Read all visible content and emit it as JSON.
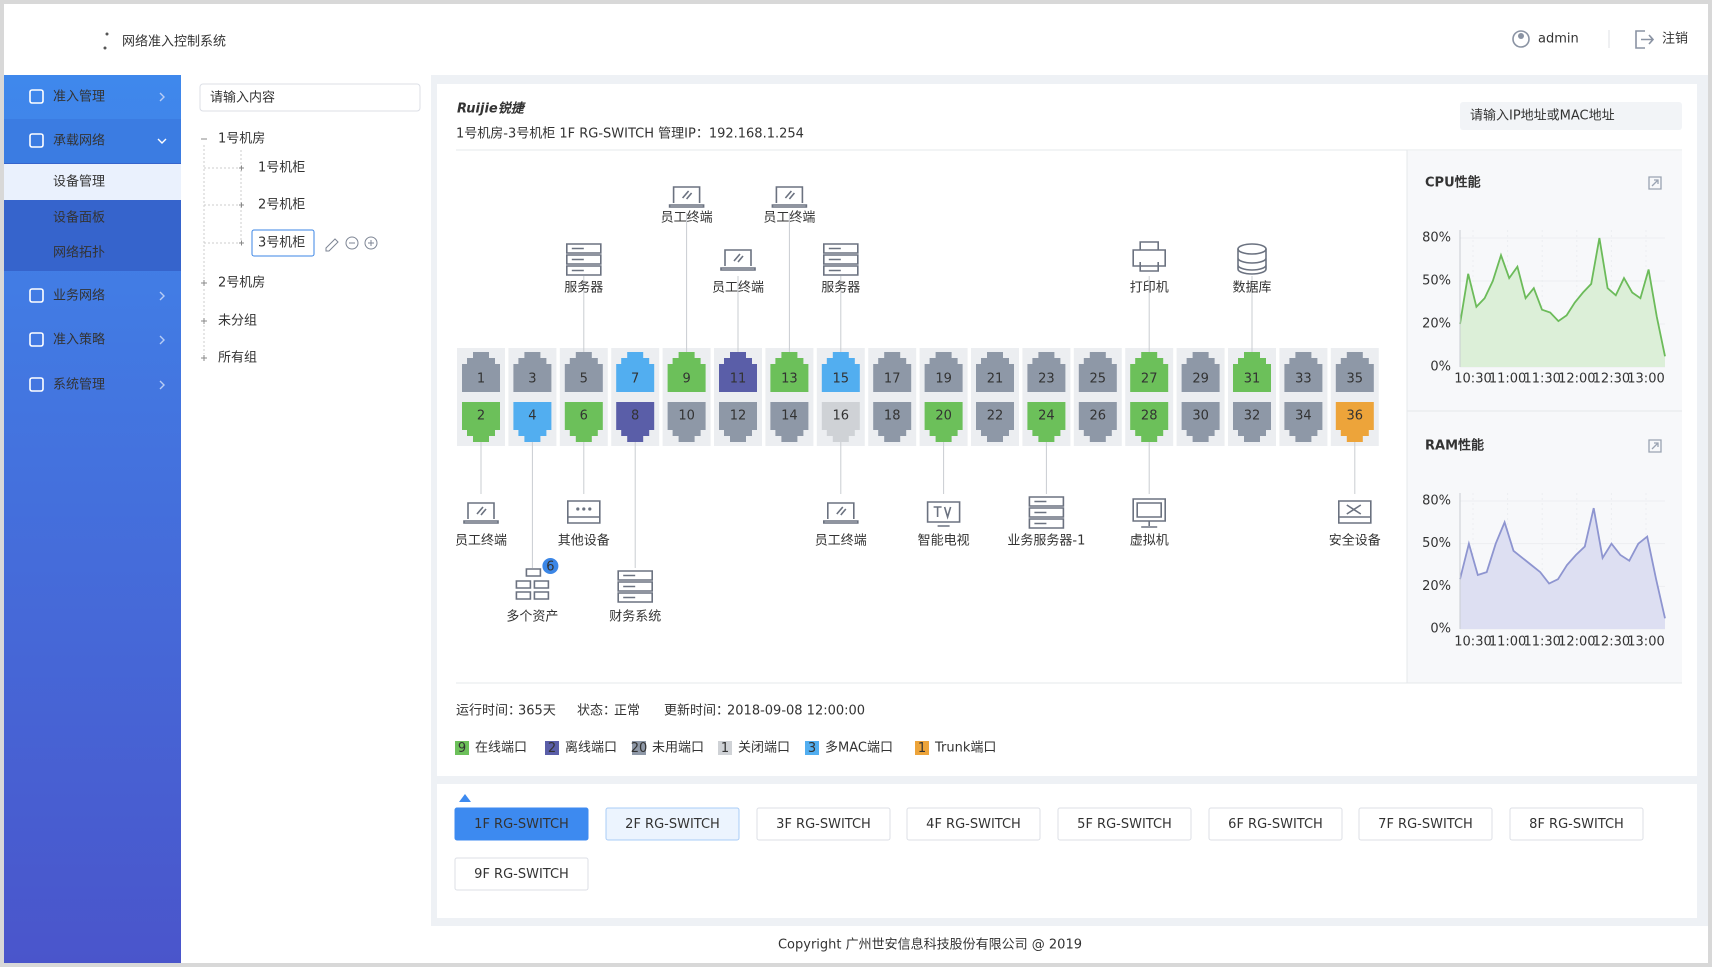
{
  "header": {
    "title": "网络准入控制系统",
    "user": "admin",
    "logout": "注销"
  },
  "menu": [
    {
      "label": "准入管理"
    },
    {
      "label": "承载网络",
      "children": [
        "设备管理",
        "设备面板",
        "网络拓扑"
      ]
    },
    {
      "label": "业务网络"
    },
    {
      "label": "准入策略"
    },
    {
      "label": "系统管理"
    }
  ],
  "tree": {
    "search_placeholder": "请输入内容",
    "nodes": [
      {
        "label": "1号机房",
        "children": [
          "1号机柜",
          "2号机柜",
          "3号机柜"
        ]
      },
      {
        "label": "2号机房"
      },
      {
        "label": "未分组"
      },
      {
        "label": "所有组"
      }
    ]
  },
  "device": {
    "brand": "Ruijie锐捷",
    "title": "1号机房-3号机柜 1F RG-SWITCH 管理IP：192.168.1.254",
    "search_placeholder": "请输入IP地址或MAC地址",
    "ports": [
      {
        "number": 1,
        "color": "#8e98a7"
      },
      {
        "number": 2,
        "color": "#6cc05a"
      },
      {
        "number": 3,
        "color": "#8e98a7"
      },
      {
        "number": 4,
        "color": "#52aef0"
      },
      {
        "number": 5,
        "color": "#8e98a7"
      },
      {
        "number": 6,
        "color": "#6cc05a"
      },
      {
        "number": 7,
        "color": "#52aef0"
      },
      {
        "number": 8,
        "color": "#5a5ea8"
      },
      {
        "number": 9,
        "color": "#6cc05a"
      },
      {
        "number": 10,
        "color": "#8e98a7"
      },
      {
        "number": 11,
        "color": "#5a5ea8"
      },
      {
        "number": 12,
        "color": "#8e98a7"
      },
      {
        "number": 13,
        "color": "#6cc05a"
      },
      {
        "number": 14,
        "color": "#8e98a7"
      },
      {
        "number": 15,
        "color": "#52aef0"
      },
      {
        "number": 16,
        "color": "#cfd2d6"
      },
      {
        "number": 17,
        "color": "#8e98a7"
      },
      {
        "number": 18,
        "color": "#8e98a7"
      },
      {
        "number": 19,
        "color": "#8e98a7"
      },
      {
        "number": 20,
        "color": "#6cc05a"
      },
      {
        "number": 21,
        "color": "#8e98a7"
      },
      {
        "number": 22,
        "color": "#8e98a7"
      },
      {
        "number": 23,
        "color": "#8e98a7"
      },
      {
        "number": 24,
        "color": "#6cc05a"
      },
      {
        "number": 25,
        "color": "#8e98a7"
      },
      {
        "number": 26,
        "color": "#8e98a7"
      },
      {
        "number": 27,
        "color": "#6cc05a"
      },
      {
        "number": 28,
        "color": "#6cc05a"
      },
      {
        "number": 29,
        "color": "#8e98a7"
      },
      {
        "number": 30,
        "color": "#8e98a7"
      },
      {
        "number": 31,
        "color": "#6cc05a"
      },
      {
        "number": 32,
        "color": "#8e98a7"
      },
      {
        "number": 33,
        "color": "#8e98a7"
      },
      {
        "number": 34,
        "color": "#8e98a7"
      },
      {
        "number": 35,
        "color": "#8e98a7"
      },
      {
        "number": 36,
        "color": "#eda43a"
      }
    ],
    "endpoints": [
      {
        "label": "员工终端",
        "port": 9
      },
      {
        "label": "员工终端",
        "port": 13
      },
      {
        "label": "服务器",
        "port": 5
      },
      {
        "label": "员工终端",
        "port": 11
      },
      {
        "label": "服务器",
        "port": 15
      },
      {
        "label": "打印机",
        "port": 27
      },
      {
        "label": "数据库",
        "port": 31
      },
      {
        "label": "员工终端",
        "port": 2
      },
      {
        "label": "其他设备",
        "port": 6
      },
      {
        "label": "员工终端",
        "port": 16
      },
      {
        "label": "智能电视",
        "port": 20
      },
      {
        "label": "业务服务器-1",
        "port": 24
      },
      {
        "label": "虚拟机",
        "port": 28
      },
      {
        "label": "安全设备",
        "port": 36
      },
      {
        "label": "多个资产",
        "port": 4,
        "badge": 6
      },
      {
        "label": "财务系统",
        "port": 8
      }
    ],
    "status": [
      {
        "label": "运行时间：",
        "value": "365天"
      },
      {
        "label": "状态：",
        "value": "正常"
      },
      {
        "label": "更新时间：",
        "value": "2018-09-08 12:00:00"
      }
    ]
  },
  "cpu": {
    "title": "CPU性能",
    "color": "#6cbb5a",
    "fill": "#dcefd8",
    "yticks": [
      {
        "value": 80,
        "label": "80%"
      },
      {
        "value": 50,
        "label": "50%"
      },
      {
        "value": 20,
        "label": "20%"
      },
      {
        "value": 0,
        "label": "0%"
      }
    ],
    "xticks": [
      "10:30",
      "11:00",
      "11:30",
      "12:00",
      "12:30",
      "13:00"
    ],
    "values": [
      20,
      55,
      32,
      38,
      50,
      68,
      52,
      60,
      38,
      45,
      30,
      28,
      22,
      26,
      35,
      42,
      48,
      80,
      45,
      40,
      52,
      42,
      38,
      58,
      25,
      5
    ]
  },
  "ram": {
    "title": "RAM性能",
    "color": "#8e95d0",
    "fill": "#dddff2",
    "yticks": [
      {
        "value": 80,
        "label": "80%"
      },
      {
        "value": 50,
        "label": "50%"
      },
      {
        "value": 20,
        "label": "20%"
      },
      {
        "value": 0,
        "label": "0%"
      }
    ],
    "xticks": [
      "10:30",
      "11:00",
      "11:30",
      "12:00",
      "12:30",
      "13:00"
    ],
    "values": [
      25,
      50,
      28,
      30,
      50,
      65,
      45,
      40,
      35,
      30,
      22,
      25,
      35,
      42,
      48,
      75,
      40,
      50,
      42,
      38,
      50,
      55,
      25,
      5
    ]
  },
  "legend": [
    {
      "count": 9,
      "label": "在线端口",
      "color": "#6cc05a"
    },
    {
      "count": 2,
      "label": "离线端口",
      "color": "#5a5ea8"
    },
    {
      "count": 20,
      "label": "未用端口",
      "color": "#8e98a7"
    },
    {
      "count": 1,
      "label": "关闭端口",
      "color": "#cfd2d6"
    },
    {
      "count": 3,
      "label": "多MAC端口",
      "color": "#52aef0"
    },
    {
      "count": 1,
      "label": "Trunk端口",
      "color": "#eda43a"
    }
  ],
  "switches": [
    "1F RG-SWITCH",
    "2F RG-SWITCH",
    "3F RG-SWITCH",
    "4F RG-SWITCH",
    "5F RG-SWITCH",
    "6F RG-SWITCH",
    "7F RG-SWITCH",
    "8F RG-SWITCH",
    "9F RG-SWITCH"
  ],
  "footer": "Copyright  广州世安信息科技股份有限公司 @ 2019"
}
